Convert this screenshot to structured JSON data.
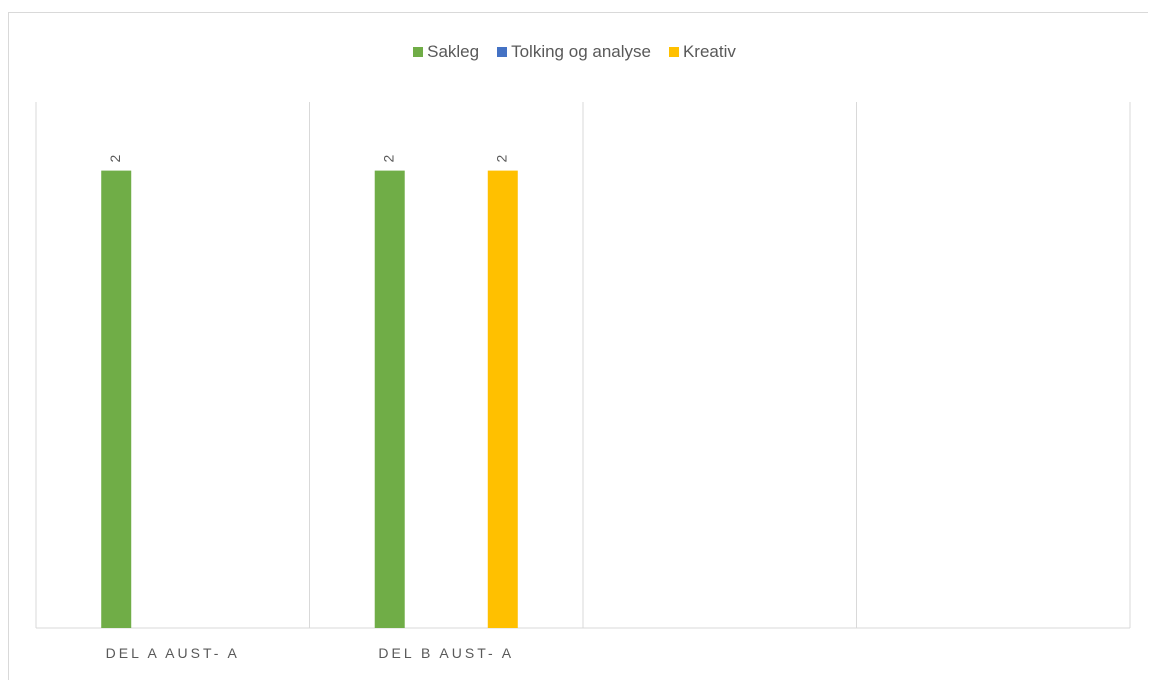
{
  "chart_data": {
    "type": "bar",
    "categories": [
      "DEL A AUST- A",
      "DEL B AUST- A",
      "",
      ""
    ],
    "series": [
      {
        "name": "Sakleg",
        "color": "#70ad47",
        "values": [
          2,
          2,
          null,
          null
        ]
      },
      {
        "name": "Tolking og analyse",
        "color": "#4472c4",
        "values": [
          null,
          null,
          null,
          null
        ]
      },
      {
        "name": "Kreativ",
        "color": "#ffc000",
        "values": [
          null,
          2,
          null,
          null
        ]
      }
    ],
    "title": "",
    "xlabel": "",
    "ylabel": "",
    "ylim": [
      0,
      2.3
    ],
    "grid": "vertical-category-separators",
    "legend_position": "top-center",
    "data_labels": true
  }
}
